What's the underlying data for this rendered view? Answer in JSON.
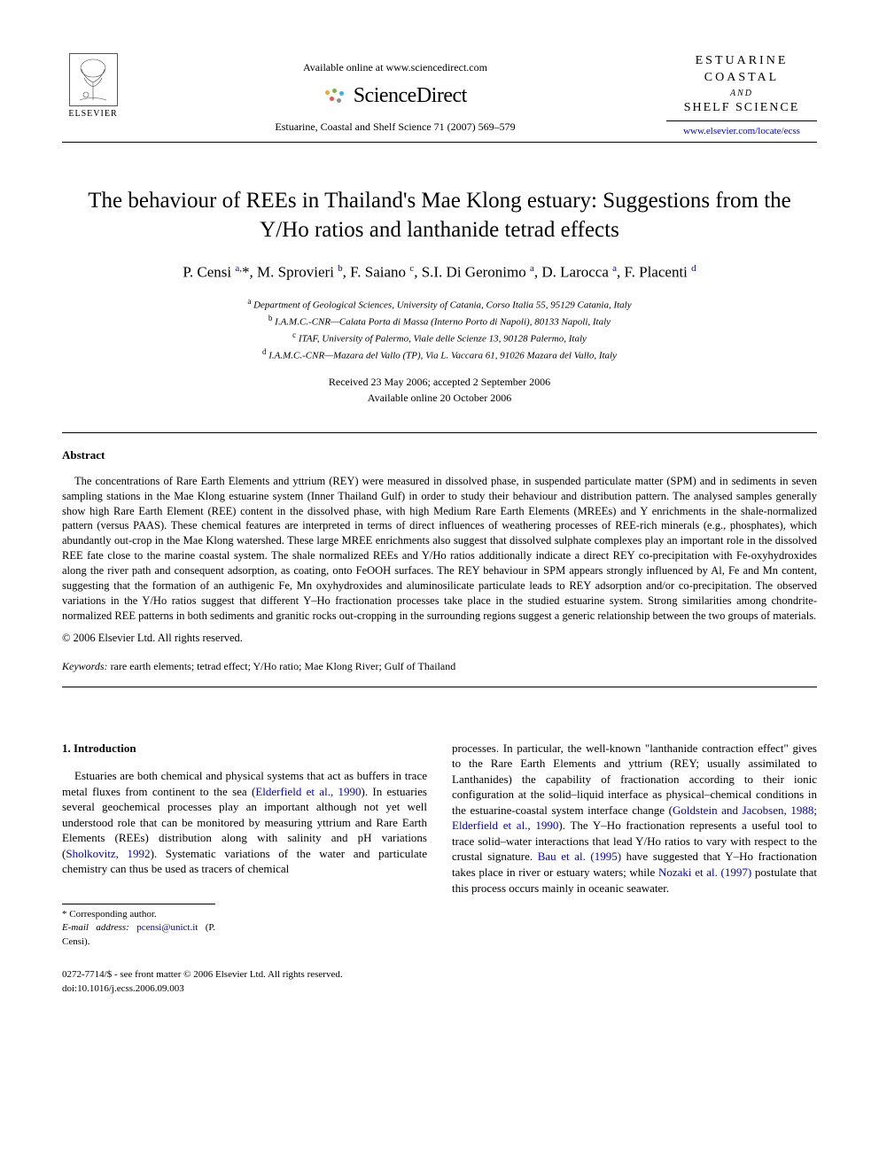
{
  "header": {
    "elsevier_label": "ELSEVIER",
    "available_text": "Available online at www.sciencedirect.com",
    "sd_brand": "ScienceDirect",
    "sd_dot_colors": [
      "#f5a623",
      "#7cb342",
      "#29b6f6",
      "#ef5350",
      "#8e8e8e"
    ],
    "journal_ref": "Estuarine, Coastal and Shelf Science 71 (2007) 569–579",
    "journal_box": {
      "line1": "ESTUARINE",
      "line2": "COASTAL",
      "and": "AND",
      "line3": "SHELF SCIENCE"
    },
    "journal_url": "www.elsevier.com/locate/ecss"
  },
  "title": "The behaviour of REEs in Thailand's Mae Klong estuary: Suggestions from the Y/Ho ratios and lanthanide tetrad effects",
  "authors_html": "P. Censi <sup>a,</sup>*, M. Sprovieri <sup>b</sup>, F. Saiano <sup>c</sup>, S.I. Di Geronimo <sup>a</sup>, D. Larocca <sup>a</sup>, F. Placenti <sup>d</sup>",
  "affiliations": [
    {
      "sup": "a",
      "text": "Department of Geological Sciences, University of Catania, Corso Italia 55, 95129 Catania, Italy"
    },
    {
      "sup": "b",
      "text": "I.A.M.C.-CNR—Calata Porta di Massa (Interno Porto di Napoli), 80133 Napoli, Italy"
    },
    {
      "sup": "c",
      "text": "ITAF, University of Palermo, Viale delle Scienze 13, 90128 Palermo, Italy"
    },
    {
      "sup": "d",
      "text": "I.A.M.C.-CNR—Mazara del Vallo (TP), Via L. Vaccara 61, 91026 Mazara del Vallo, Italy"
    }
  ],
  "dates": {
    "received": "Received 23 May 2006; accepted 2 September 2006",
    "online": "Available online 20 October 2006"
  },
  "abstract": {
    "heading": "Abstract",
    "body": "The concentrations of Rare Earth Elements and yttrium (REY) were measured in dissolved phase, in suspended particulate matter (SPM) and in sediments in seven sampling stations in the Mae Klong estuarine system (Inner Thailand Gulf) in order to study their behaviour and distribution pattern. The analysed samples generally show high Rare Earth Element (REE) content in the dissolved phase, with high Medium Rare Earth Elements (MREEs) and Y enrichments in the shale-normalized pattern (versus PAAS). These chemical features are interpreted in terms of direct influences of weathering processes of REE-rich minerals (e.g., phosphates), which abundantly out-crop in the Mae Klong watershed. These large MREE enrichments also suggest that dissolved sulphate complexes play an important role in the dissolved REE fate close to the marine coastal system. The shale normalized REEs and Y/Ho ratios additionally indicate a direct REY co-precipitation with Fe-oxyhydroxides along the river path and consequent adsorption, as coating, onto FeOOH surfaces. The REY behaviour in SPM appears strongly influenced by Al, Fe and Mn content, suggesting that the formation of an authigenic Fe, Mn oxyhydroxides and aluminosilicate particulate leads to REY adsorption and/or co-precipitation. The observed variations in the Y/Ho ratios suggest that different Y–Ho fractionation processes take place in the studied estuarine system. Strong similarities among chondrite-normalized REE patterns in both sediments and granitic rocks out-cropping in the surrounding regions suggest a generic relationship between the two groups of materials.",
    "copyright": "© 2006 Elsevier Ltd. All rights reserved."
  },
  "keywords": {
    "label": "Keywords:",
    "text": "rare earth elements; tetrad effect; Y/Ho ratio; Mae Klong River; Gulf of Thailand"
  },
  "section1": {
    "heading": "1. Introduction",
    "col_left": "Estuaries are both chemical and physical systems that act as buffers in trace metal fluxes from continent to the sea (<span class=\"cite\">Elderfield et al., 1990</span>). In estuaries several geochemical processes play an important although not yet well understood role that can be monitored by measuring yttrium and Rare Earth Elements (REEs) distribution along with salinity and pH variations (<span class=\"cite\">Sholkovitz, 1992</span>). Systematic variations of the water and particulate chemistry can thus be used as tracers of chemical",
    "col_right": "processes. In particular, the well-known \"lanthanide contraction effect\" gives to the Rare Earth Elements and yttrium (REY; usually assimilated to Lanthanides) the capability of fractionation according to their ionic configuration at the solid–liquid interface as physical–chemical conditions in the estuarine-coastal system interface change (<span class=\"cite\">Goldstein and Jacobsen, 1988; Elderfield et al., 1990</span>). The Y–Ho fractionation represents a useful tool to trace solid–water interactions that lead Y/Ho ratios to vary with respect to the crustal signature. <span class=\"cite\">Bau et al. (1995)</span> have suggested that Y–Ho fractionation takes place in river or estuary waters; while <span class=\"cite\">Nozaki et al. (1997)</span> postulate that this process occurs mainly in oceanic seawater."
  },
  "footnotes": {
    "corresponding": "* Corresponding author.",
    "email_label": "E-mail address:",
    "email": "pcensi@unict.it",
    "email_tail": "(P. Censi)."
  },
  "bottom": {
    "issn": "0272-7714/$ - see front matter © 2006 Elsevier Ltd. All rights reserved.",
    "doi": "doi:10.1016/j.ecss.2006.09.003"
  },
  "colors": {
    "text": "#000000",
    "link": "#0000cc",
    "background": "#ffffff",
    "rule": "#000000"
  },
  "typography": {
    "body_pt": 13,
    "title_pt": 25,
    "authors_pt": 17,
    "small_pt": 11,
    "font_family": "Times New Roman"
  }
}
